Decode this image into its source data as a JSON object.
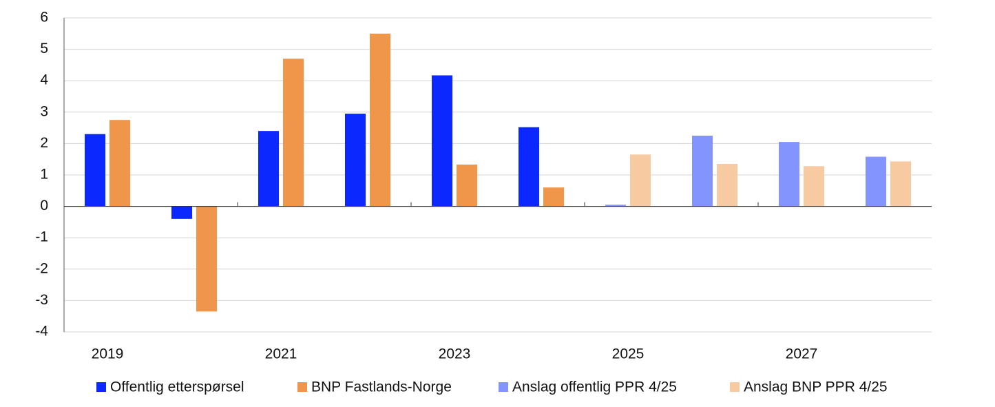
{
  "chart_data": {
    "type": "bar",
    "categories": [
      "2019",
      null,
      "2021",
      null,
      "2023",
      null,
      "2025",
      null,
      "2027",
      null
    ],
    "series": [
      {
        "name": "Offentlig etterspørsel",
        "color": "#0a28ff",
        "values": [
          2.3,
          -0.4,
          2.4,
          2.95,
          4.17,
          2.52,
          null,
          null,
          null,
          null
        ]
      },
      {
        "name": "BNP Fastlands-Norge",
        "color": "#f0964a",
        "values": [
          2.75,
          -3.35,
          4.7,
          5.5,
          1.33,
          0.6,
          null,
          null,
          null,
          null
        ]
      },
      {
        "name": "Anslag offentlig PPR 4/25",
        "color": "#8494ff",
        "values": [
          null,
          null,
          null,
          null,
          null,
          null,
          0.05,
          2.25,
          2.05,
          1.58
        ]
      },
      {
        "name": "Anslag BNP PPR 4/25",
        "color": "#f7caa2",
        "values": [
          null,
          null,
          null,
          null,
          null,
          null,
          1.65,
          1.35,
          1.28,
          1.43
        ]
      }
    ],
    "ylim": [
      -4,
      6
    ],
    "yticks": [
      -4,
      -3,
      -2,
      -1,
      0,
      1,
      2,
      3,
      4,
      5,
      6
    ],
    "grid": true
  }
}
